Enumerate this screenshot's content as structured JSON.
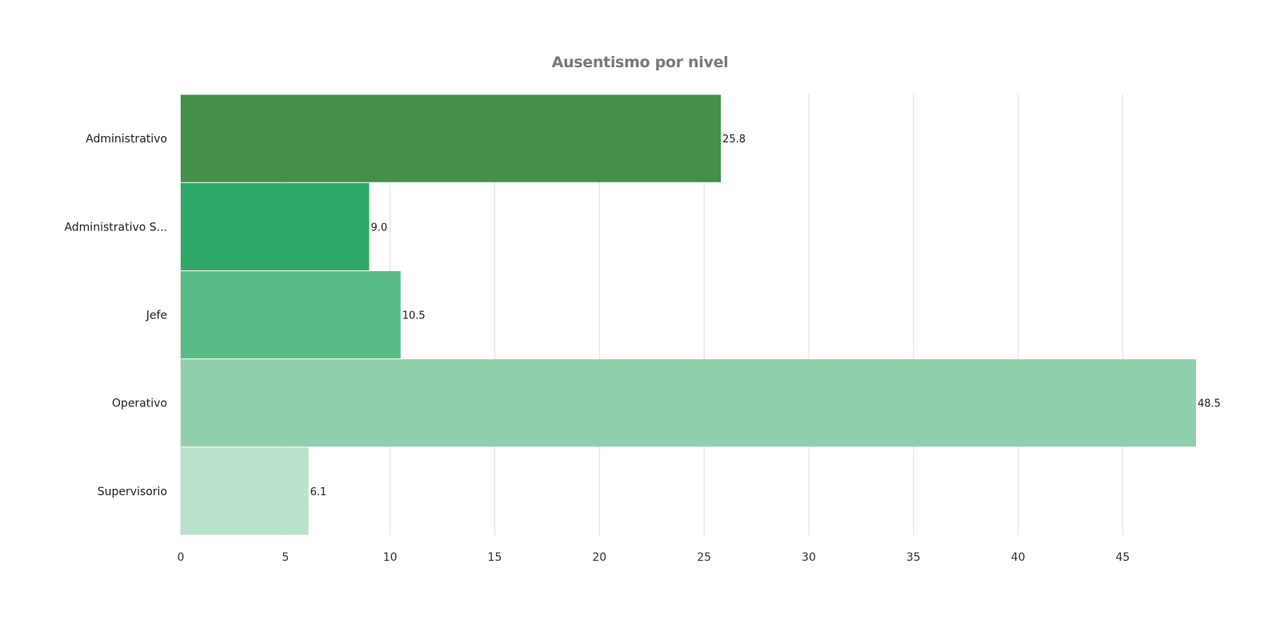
{
  "chart_data": {
    "type": "bar",
    "orientation": "horizontal",
    "title": "Ausentismo por nivel",
    "xlabel": "",
    "ylabel": "",
    "categories": [
      "Administrativo",
      "Administrativo S...",
      "Jefe",
      "Operativo",
      "Supervisorio"
    ],
    "values": [
      25.8,
      9.0,
      10.5,
      48.5,
      6.1
    ],
    "value_labels": [
      "25.8",
      "9.0",
      "10.5",
      "48.5",
      "6.1"
    ],
    "bar_colors": [
      "#448f4a",
      "#2ea866",
      "#59bb87",
      "#8fd0ac",
      "#b8e2cb"
    ],
    "xlim": [
      0,
      48.5
    ],
    "xticks": [
      0,
      5,
      10,
      15,
      20,
      25,
      30,
      35,
      40,
      45
    ],
    "grid": "vertical",
    "legend": "none"
  }
}
